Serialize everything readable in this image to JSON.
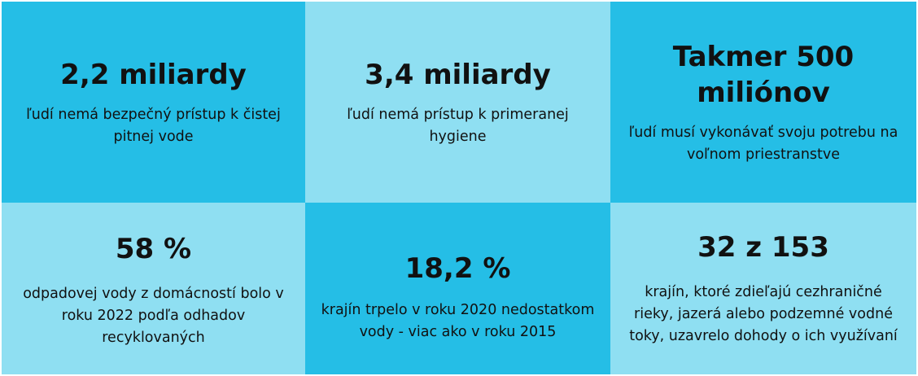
{
  "stats": [
    {
      "value": "2,2 miliardy",
      "description": "ľudí nemá bezpečný prístup k čistej pitnej vode",
      "color": "#25bee6"
    },
    {
      "value": "3,4 miliardy",
      "description": "ľudí nemá prístup k primeranej hygiene",
      "color": "#8fdff2"
    },
    {
      "value": "Takmer 500 miliónov",
      "description": "ľudí musí vykonávať svoju potrebu na voľnom priestranstve",
      "color": "#25bee6"
    },
    {
      "value": "58 %",
      "description": "odpadovej vody z domácností bolo v roku 2022 podľa odhadov recyklovaných",
      "color": "#8fdff2"
    },
    {
      "value": "18,2 %",
      "description": "krajín trpelo v roku 2020 nedostatkom vody - viac ako v roku 2015",
      "color": "#25bee6"
    },
    {
      "value": "32 z 153",
      "description": "krajín, ktoré zdieľajú cezhraničné rieky, jazerá alebo podzemné vodné toky, uzavrelo dohody o ich využívaní",
      "color": "#8fdff2"
    }
  ]
}
